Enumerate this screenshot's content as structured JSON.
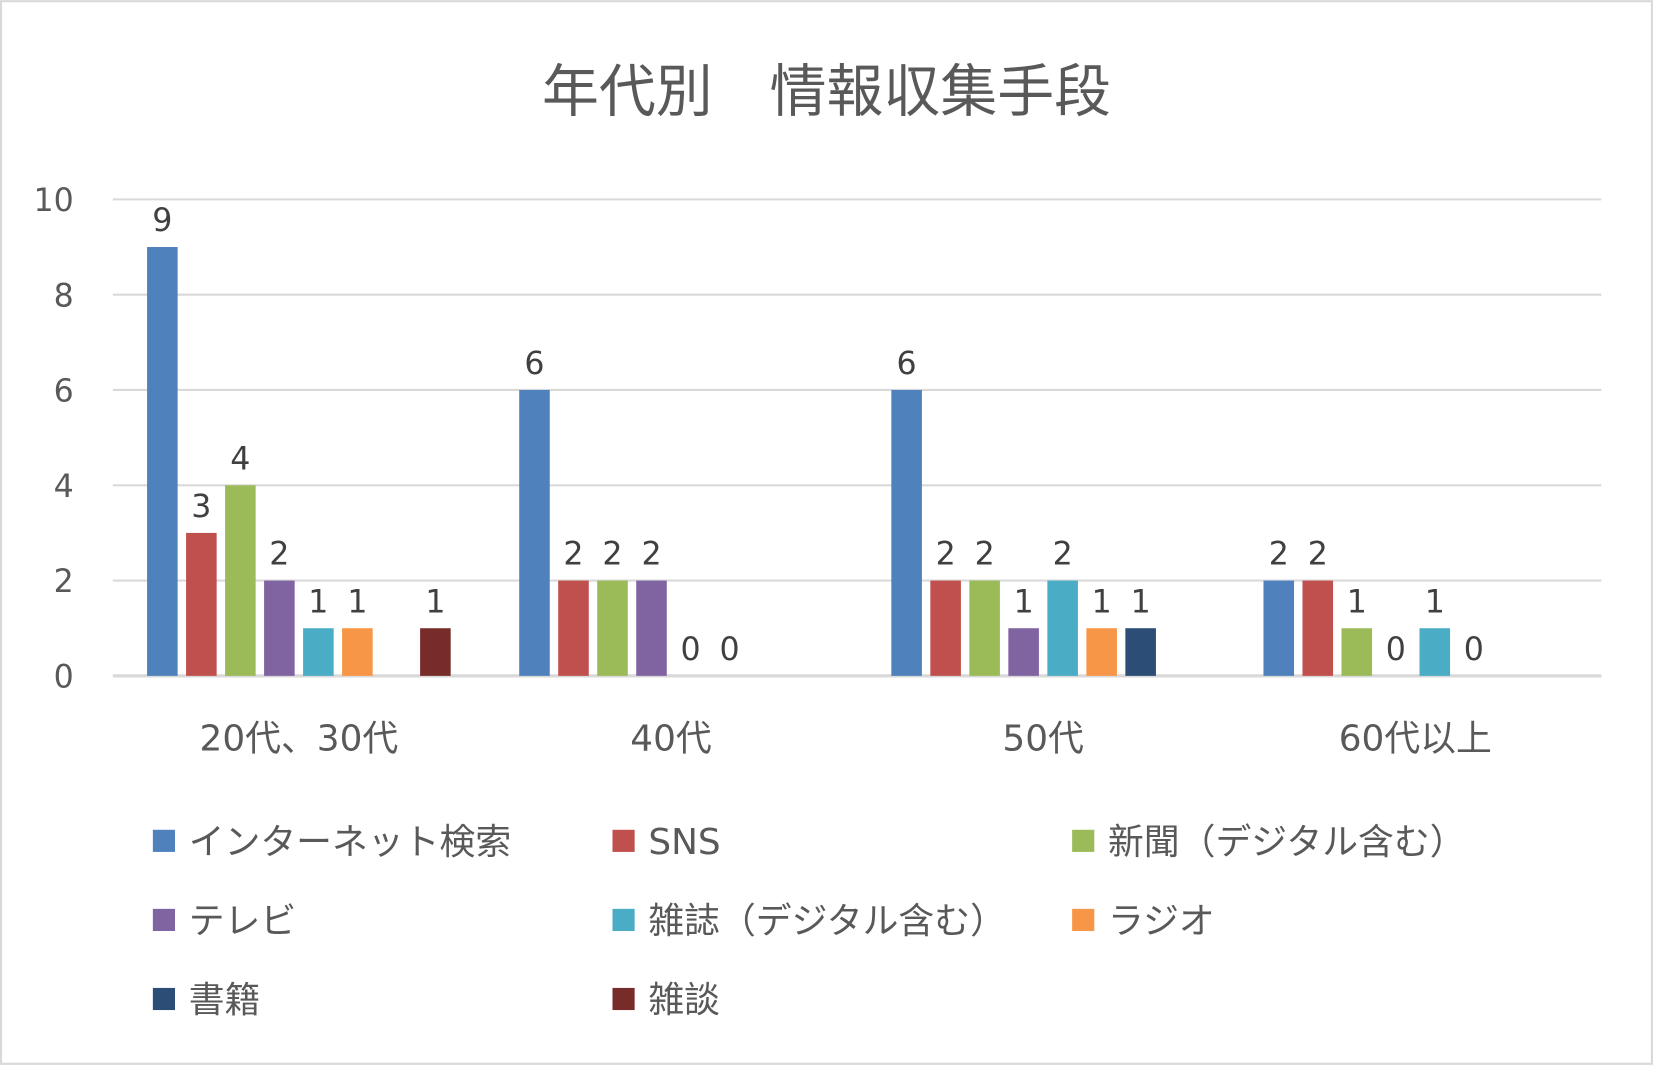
{
  "chart_data": {
    "type": "bar",
    "title": "年代別　情報収集手段",
    "xlabel": "",
    "ylabel": "",
    "ylim": [
      0,
      10
    ],
    "yticks": [
      0,
      2,
      4,
      6,
      8,
      10
    ],
    "grid": true,
    "legend_position": "bottom",
    "categories": [
      "20代、30代",
      "40代",
      "50代",
      "60代以上"
    ],
    "series": [
      {
        "name": "インターネット検索",
        "color": "#4F81BD",
        "values": [
          9,
          6,
          6,
          2
        ]
      },
      {
        "name": "SNS",
        "color": "#C0504D",
        "values": [
          3,
          2,
          2,
          2
        ]
      },
      {
        "name": "新聞（デジタル含む）",
        "color": "#9BBB59",
        "values": [
          4,
          2,
          2,
          1
        ]
      },
      {
        "name": "テレビ",
        "color": "#8064A2",
        "values": [
          2,
          2,
          1,
          0
        ]
      },
      {
        "name": "雑誌（デジタル含む）",
        "color": "#4BACC6",
        "values": [
          1,
          0,
          2,
          1
        ]
      },
      {
        "name": "ラジオ",
        "color": "#F79646",
        "values": [
          1,
          0,
          1,
          0
        ]
      },
      {
        "name": "書籍",
        "color": "#2C4D75",
        "values": [
          null,
          null,
          1,
          null
        ]
      },
      {
        "name": "雑談",
        "color": "#772C2A",
        "values": [
          1,
          null,
          null,
          null
        ]
      }
    ]
  }
}
